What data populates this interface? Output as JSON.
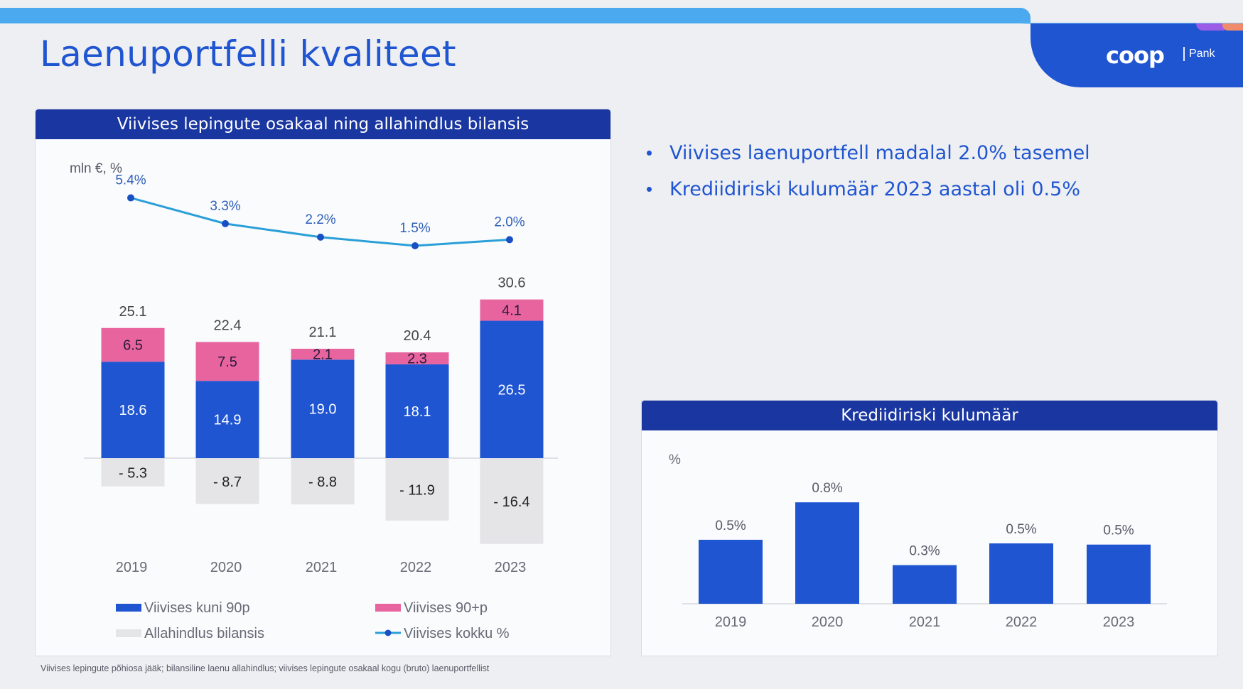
{
  "slide": {
    "title": "Laenuportfelli kvaliteet",
    "logo": {
      "word": "coop",
      "suffix": "Pank"
    },
    "bullets": [
      "Viivises laenuportfell madalal 2.0% tasemel",
      "Krediidiriski kulumäär 2023 aastal oli 0.5%"
    ],
    "footnote": "Viivises lepingute põhiosa jääk; bilansiline laenu allahindlus; viivises lepingute osakaal kogu (bruto) laenuportfellist"
  },
  "colors": {
    "brand_blue": "#1f55d1",
    "header_navy": "#1a36a0",
    "overdue_pink": "#e8649f",
    "impairment_grey": "#e5e5e8",
    "line_teal": "#2a9fd8",
    "line_marker": "#1a4fc4"
  },
  "chart_data": [
    {
      "type": "bar",
      "stacked": true,
      "title": "Viivises lepingute osakaal ning allahindlus bilansis",
      "unit_label": "mln €, %",
      "categories": [
        "2019",
        "2020",
        "2021",
        "2022",
        "2023"
      ],
      "series": [
        {
          "name": "Viivises kuni 90p",
          "values": [
            18.6,
            14.9,
            19.0,
            18.1,
            26.5
          ],
          "labels": [
            "18.6",
            "14.9",
            "19.0",
            "18.1",
            "26.5"
          ]
        },
        {
          "name": "Viivises 90+p",
          "values": [
            6.5,
            7.5,
            2.1,
            2.3,
            4.1
          ],
          "labels": [
            "6.5",
            "7.5",
            "2.1",
            "2.3",
            "4.1"
          ]
        },
        {
          "name": "Allahindlus bilansis",
          "values": [
            -5.3,
            -8.7,
            -8.8,
            -11.9,
            -16.4
          ],
          "labels": [
            "- 5.3",
            "- 8.7",
            "- 8.8",
            "- 11.9",
            "- 16.4"
          ]
        }
      ],
      "totals": {
        "values": [
          25.1,
          22.4,
          21.1,
          20.4,
          30.6
        ],
        "labels": [
          "25.1",
          "22.4",
          "21.1",
          "20.4",
          "30.6"
        ]
      },
      "line_series": {
        "name": "Viivises kokku %",
        "values": [
          5.4,
          3.3,
          2.2,
          1.5,
          2.0
        ],
        "labels": [
          "5.4%",
          "3.3%",
          "2.2%",
          "1.5%",
          "2.0%"
        ]
      },
      "legend": [
        "Viivises kuni 90p",
        "Viivises 90+p",
        "Allahindlus bilansis",
        "Viivises kokku %"
      ],
      "legend_position": "bottom",
      "grid": false
    },
    {
      "type": "bar",
      "title": "Krediidiriski kulumäär",
      "unit_label": "%",
      "categories": [
        "2019",
        "2020",
        "2021",
        "2022",
        "2023"
      ],
      "values": [
        0.5,
        0.8,
        0.3,
        0.5,
        0.5
      ],
      "bar_heights_pct": [
        0.53,
        0.84,
        0.32,
        0.5,
        0.49
      ],
      "labels": [
        "0.5%",
        "0.8%",
        "0.3%",
        "0.5%",
        "0.5%"
      ],
      "grid": false
    }
  ]
}
